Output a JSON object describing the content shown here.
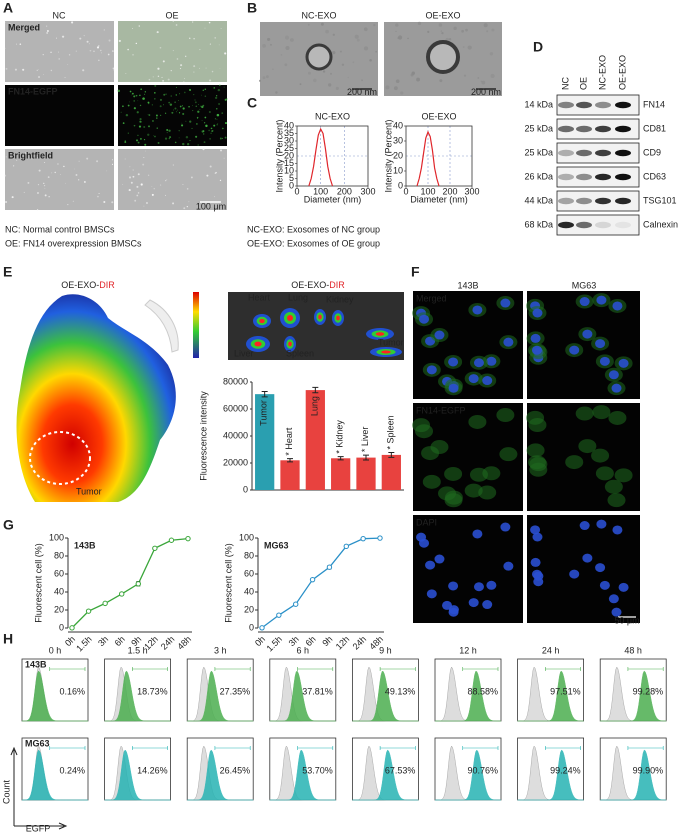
{
  "panels": {
    "A": {
      "label": "A",
      "columns": [
        "NC",
        "OE"
      ],
      "rows": [
        "Merged",
        "FN14-EGFP",
        "Brightfield"
      ],
      "scale_bar": "100 μm",
      "notes": [
        "NC: Normal control BMSCs",
        "OE: FN14 overexpression BMSCs"
      ]
    },
    "B": {
      "label": "B",
      "columns": [
        "NC-EXO",
        "OE-EXO"
      ],
      "scale_bar": "200 nm"
    },
    "C": {
      "label": "C",
      "notes": [
        "NC-EXO: Exosomes of NC group",
        "OE-EXO: Exosomes of OE group"
      ]
    },
    "D": {
      "label": "D",
      "lanes": [
        "NC",
        "OE",
        "NC-EXO",
        "OE-EXO"
      ],
      "blots": [
        {
          "size": "14 kDa",
          "protein": "FN14"
        },
        {
          "size": "25 kDa",
          "protein": "CD81"
        },
        {
          "size": "25 kDa",
          "protein": "CD9"
        },
        {
          "size": "26 kDa",
          "protein": "CD63"
        },
        {
          "size": "44 kDa",
          "protein": "TSG101"
        },
        {
          "size": "68 kDa",
          "protein": "Calnexin"
        }
      ]
    },
    "E": {
      "label": "E",
      "title_prefix": "OE-EXO-",
      "title_dye": "DIR",
      "tumor_label": "Tumor",
      "organs": [
        "Heart",
        "Lung",
        "Kidney",
        "Liver",
        "Spleen",
        "Tumor"
      ]
    },
    "F": {
      "label": "F",
      "columns": [
        "143B",
        "MG63"
      ],
      "rows": [
        "Merged",
        "FN14-EGFP",
        "DAPI"
      ],
      "scale_bar": "50 μm"
    },
    "G": {
      "label": "G"
    },
    "H": {
      "label": "H",
      "y_axis": "Count",
      "x_axis": "EGFP"
    }
  },
  "chart_data": [
    {
      "type": "line",
      "title": "NC-EXO",
      "title_color": "#2a9fd6",
      "xlabel": "Diameter (nm)",
      "ylabel": "Intensity (Percent)",
      "xlim": [
        0,
        300
      ],
      "ylim": [
        0,
        40
      ],
      "xticks": [
        0,
        100,
        200,
        300
      ],
      "yticks": [
        0,
        5,
        10,
        15,
        20,
        25,
        30,
        35,
        40
      ],
      "grid": true,
      "x": [
        50,
        60,
        70,
        80,
        90,
        100,
        110,
        120,
        130,
        140,
        150
      ],
      "series": [
        {
          "name": "NC-EXO",
          "color": "#e0262b",
          "values": [
            0,
            5,
            13,
            24,
            34,
            38,
            35,
            25,
            13,
            5,
            0
          ]
        }
      ]
    },
    {
      "type": "line",
      "title": "OE-EXO",
      "title_color": "#e0262b",
      "xlabel": "Diameter (nm)",
      "ylabel": "Intensity (Percent)",
      "xlim": [
        0,
        300
      ],
      "ylim": [
        0,
        40
      ],
      "xticks": [
        0,
        100,
        200,
        300
      ],
      "yticks": [
        0,
        10,
        20,
        30,
        40
      ],
      "grid": true,
      "x": [
        50,
        60,
        70,
        80,
        90,
        100,
        110,
        120,
        130,
        140,
        150
      ],
      "series": [
        {
          "name": "OE-EXO",
          "color": "#e0262b",
          "values": [
            0,
            5,
            12,
            22,
            32,
            36,
            33,
            24,
            12,
            5,
            0
          ]
        }
      ]
    },
    {
      "type": "bar",
      "ylabel": "Fluorescence intensity",
      "categories": [
        "Tumor",
        "Heart",
        "Lung",
        "Kidney",
        "Liver",
        "Spleen"
      ],
      "values": [
        71000,
        22000,
        74000,
        23500,
        24000,
        26000
      ],
      "errors": [
        2000,
        1200,
        2000,
        1200,
        1800,
        1800
      ],
      "significance": [
        null,
        "*",
        null,
        "*",
        "*",
        "*"
      ],
      "colors": [
        "#2a9fb0",
        "#e8423f",
        "#e8423f",
        "#e8423f",
        "#e8423f",
        "#e8423f"
      ],
      "ylim": [
        0,
        80000
      ],
      "yticks": [
        0,
        20000,
        40000,
        60000,
        80000
      ]
    },
    {
      "type": "line",
      "title": "143B",
      "ylabel": "Fluorescent cell (%)",
      "categories": [
        "0h",
        "1.5h",
        "3h",
        "6h",
        "9h",
        "12h",
        "24h",
        "48h"
      ],
      "series": [
        {
          "name": "143B",
          "color": "#3aa63a",
          "values": [
            0.16,
            18.73,
            27.35,
            37.81,
            49.13,
            88.58,
            97.51,
            99.28
          ]
        }
      ],
      "errors": [
        0.2,
        1,
        1,
        1.5,
        2.5,
        1.5,
        1,
        0.5
      ],
      "ylim": [
        0,
        100
      ],
      "yticks": [
        0,
        20,
        40,
        60,
        80,
        100
      ]
    },
    {
      "type": "line",
      "title": "MG63",
      "ylabel": "Fluorescent cell (%)",
      "categories": [
        "0h",
        "1.5h",
        "3h",
        "6h",
        "9h",
        "12h",
        "24h",
        "48h"
      ],
      "series": [
        {
          "name": "MG63",
          "color": "#2a90c8",
          "values": [
            0.24,
            14.26,
            26.45,
            53.7,
            67.53,
            90.76,
            99.24,
            99.9
          ]
        }
      ],
      "errors": [
        0.2,
        1.5,
        1.5,
        1.5,
        2,
        1.5,
        0.5,
        0.3
      ],
      "ylim": [
        0,
        100
      ],
      "yticks": [
        0,
        20,
        40,
        60,
        80,
        100
      ]
    },
    {
      "type": "flow",
      "categories": [
        "0 h",
        "1.5 h",
        "3 h",
        "6 h",
        "9 h",
        "12 h",
        "24 h",
        "48 h"
      ],
      "series": [
        {
          "name": "143B",
          "color": "#4caf50",
          "values": [
            0.16,
            18.73,
            27.35,
            37.81,
            49.13,
            88.58,
            97.51,
            99.28
          ],
          "value_labels": [
            "0.16%",
            "18.73%",
            "27.35%",
            "37.81%",
            "49.13%",
            "88.58%",
            "97.51%",
            "99.28%"
          ]
        },
        {
          "name": "MG63",
          "color": "#26b3b3",
          "values": [
            0.24,
            14.26,
            26.45,
            53.7,
            67.53,
            90.76,
            99.24,
            99.9
          ],
          "value_labels": [
            "0.24%",
            "14.26%",
            "26.45%",
            "53.70%",
            "67.53%",
            "90.76%",
            "99.24%",
            "99.90%"
          ]
        }
      ]
    }
  ]
}
